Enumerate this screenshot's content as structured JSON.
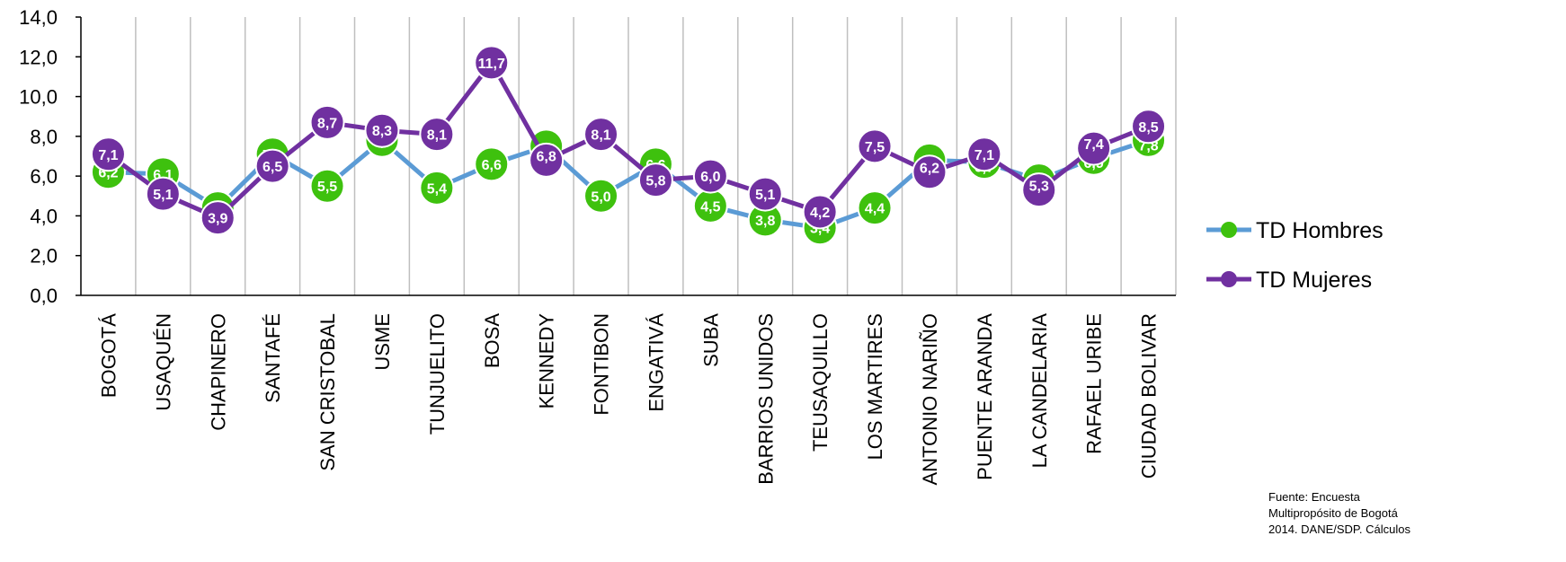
{
  "chart_data": {
    "type": "line",
    "title": "",
    "xlabel": "",
    "ylabel": "",
    "ylim": [
      0,
      14
    ],
    "yticks": [
      "0,0",
      "2,0",
      "4,0",
      "6,0",
      "8,0",
      "10,0",
      "12,0",
      "14,0"
    ],
    "grid": "vertical",
    "legend_position": "right",
    "categories": [
      "BOGOTÁ",
      "USAQUÉN",
      "CHAPINERO",
      "SANTAFÉ",
      "SAN CRISTOBAL",
      "USME",
      "TUNJUELITO",
      "BOSA",
      "KENNEDY",
      "FONTIBON",
      "ENGATIVÁ",
      "SUBA",
      "BARRIOS UNIDOS",
      "TEUSAQUILLO",
      "LOS MARTIRES",
      "ANTONIO NARIÑO",
      "PUENTE ARANDA",
      "LA CANDELARIA",
      "RAFAEL URIBE",
      "CIUDAD BOLIVAR"
    ],
    "series": [
      {
        "name": "TD Hombres",
        "line_color": "#5B9BD5",
        "marker_color": "#3EC10E",
        "values": [
          6.2,
          6.1,
          4.4,
          7.1,
          5.5,
          7.8,
          5.4,
          6.6,
          7.5,
          5.0,
          6.6,
          4.5,
          3.8,
          3.4,
          4.4,
          6.8,
          6.7,
          5.8,
          6.9,
          7.8
        ],
        "labels": [
          "6,2",
          "6,1",
          "4,4",
          "7,1",
          "5,5",
          "7,8",
          "5,4",
          "6,6",
          "7,5",
          "5,0",
          "6,6",
          "4,5",
          "3,8",
          "3,4",
          "4,4",
          "6,8",
          "6,7",
          "5,8",
          "6,9",
          "7,8"
        ]
      },
      {
        "name": "TD Mujeres",
        "line_color": "#7030A0",
        "marker_color": "#7030A0",
        "values": [
          7.1,
          5.1,
          3.9,
          6.5,
          8.7,
          8.3,
          8.1,
          11.7,
          6.8,
          8.1,
          5.8,
          6.0,
          5.1,
          4.2,
          7.5,
          6.2,
          7.1,
          5.3,
          7.4,
          8.5
        ],
        "labels": [
          "7,1",
          "5,1",
          "3,9",
          "6,5",
          "8,7",
          "8,3",
          "8,1",
          "11,7",
          "6,8",
          "8,1",
          "5,8",
          "6,0",
          "5,1",
          "4,2",
          "7,5",
          "6,2",
          "7,1",
          "5,3",
          "7,4",
          "8,5"
        ]
      }
    ],
    "axis_color": "#000000",
    "grid_color": "#BFBFBF"
  },
  "source_note": "Fuente: Encuesta\nMultipropósito de Bogotá\n2014. DANE/SDP. Cálculos"
}
